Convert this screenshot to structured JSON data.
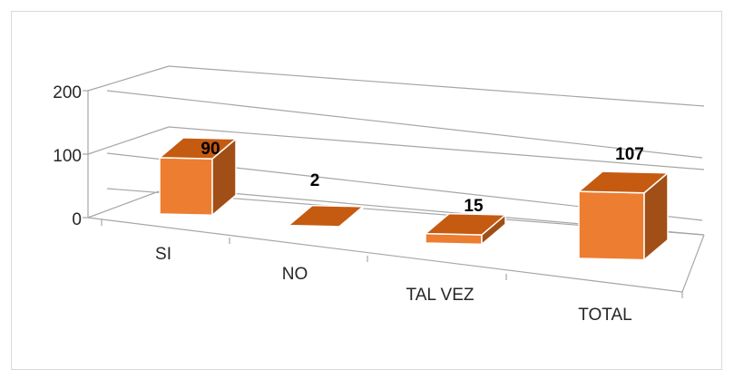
{
  "chart_data": {
    "type": "bar",
    "style": "3d-column",
    "categories": [
      "SI",
      "NO",
      "TAL VEZ",
      "TOTAL"
    ],
    "values": [
      90,
      2,
      15,
      107
    ],
    "ylim": [
      0,
      200
    ],
    "yticks": [
      "0",
      "100",
      "200"
    ],
    "data_labels": [
      "90",
      "2",
      "15",
      "107"
    ],
    "title": "",
    "xlabel": "",
    "ylabel": "",
    "grid": true,
    "legend": "none",
    "colors": {
      "bar_front": "#ed7d31",
      "bar_top": "#c55a11",
      "bar_side": "#a14f17",
      "gridline": "#a6a6a6"
    }
  }
}
